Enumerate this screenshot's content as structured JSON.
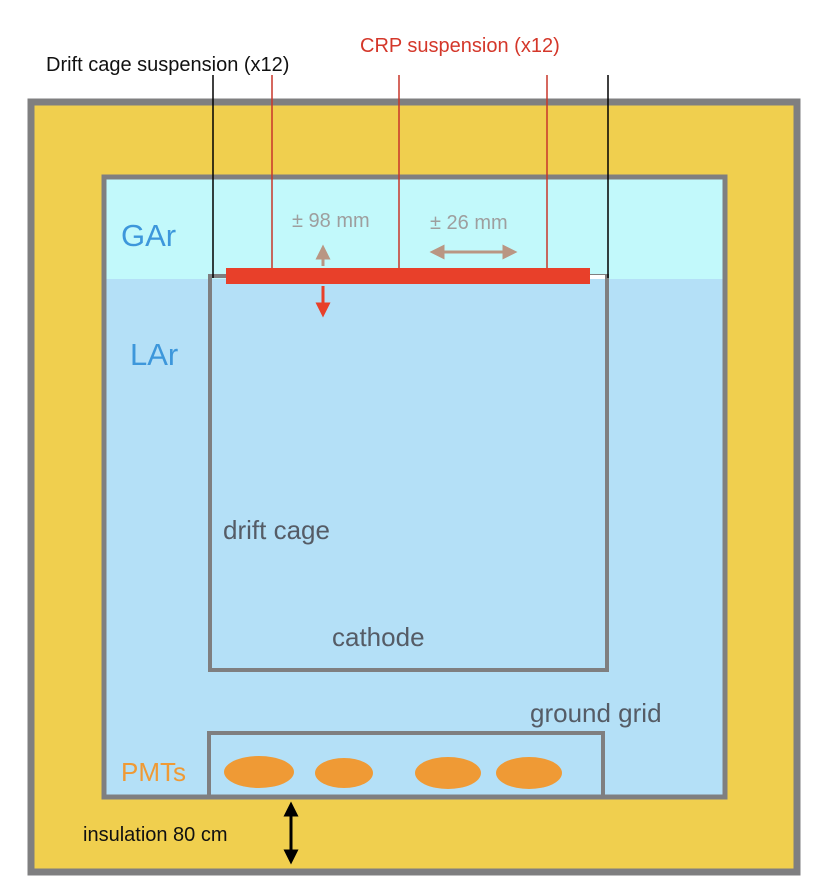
{
  "labels": {
    "drift_cage_suspension": "Drift cage suspension (x12)",
    "crp_suspension": "CRP suspension (x12)",
    "gar": "GAr",
    "lar": "LAr",
    "plus_minus_98": "± 98 mm",
    "plus_minus_26": "± 26 mm",
    "drift_cage": "drift cage",
    "cathode": "cathode",
    "ground_grid": "ground grid",
    "pmts": "PMTs",
    "insulation": "insulation 80 cm"
  },
  "colors": {
    "insulation": "#f0cf4e",
    "vessel_border": "#7f7f80",
    "gas_argon": "#c2f9fb",
    "liquid_argon": "#b4e0f7",
    "crp": "#e8402a",
    "suspension_red": "#c8372a",
    "movement_arrow": "#b99683",
    "pmt": "#ef9a35",
    "gar_text": "#3d97db",
    "lar_text": "#3d97db",
    "pmt_text": "#ef9a35",
    "crp_text": "#d4372a"
  },
  "pmt_count": 4
}
